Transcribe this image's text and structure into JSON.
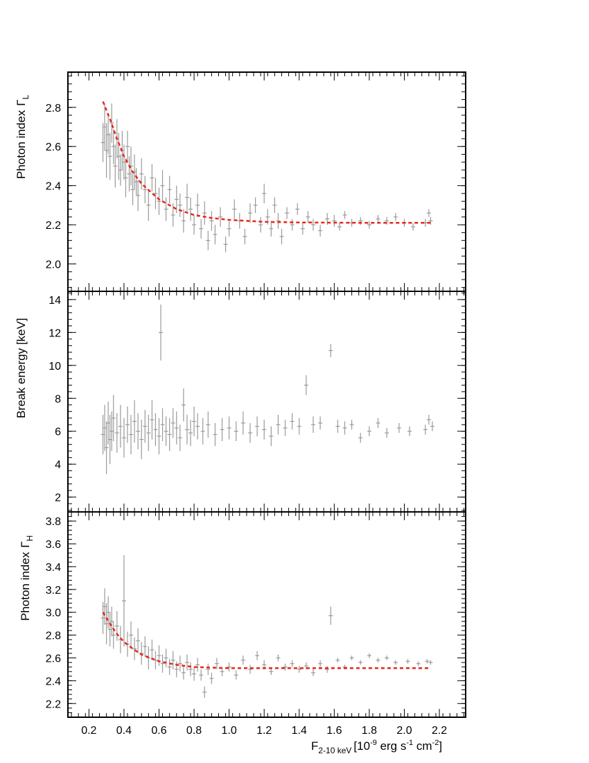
{
  "chart_data": [
    {
      "type": "scatter",
      "panel": "top",
      "ylabel": "Photon index",
      "ylabel_symbol": "Γ",
      "ylabel_sub": "L",
      "xlim": [
        0.08,
        2.35
      ],
      "ylim": [
        1.86,
        2.98
      ],
      "y_ticks": [
        2.0,
        2.2,
        2.4,
        2.6,
        2.8
      ],
      "y_tick_labels": [
        "2.0",
        "2.2",
        "2.4",
        "2.6",
        "2.8"
      ],
      "points_description": "grey data points with error bars, dense at low flux",
      "series": [
        {
          "name": "data",
          "color": "#999999",
          "x": [
            0.28,
            0.29,
            0.3,
            0.31,
            0.32,
            0.33,
            0.34,
            0.35,
            0.36,
            0.37,
            0.38,
            0.39,
            0.4,
            0.41,
            0.42,
            0.43,
            0.44,
            0.45,
            0.46,
            0.47,
            0.48,
            0.5,
            0.52,
            0.54,
            0.56,
            0.58,
            0.6,
            0.62,
            0.64,
            0.66,
            0.68,
            0.7,
            0.72,
            0.74,
            0.76,
            0.78,
            0.8,
            0.82,
            0.84,
            0.86,
            0.88,
            0.9,
            0.92,
            0.95,
            0.98,
            1.0,
            1.03,
            1.06,
            1.09,
            1.12,
            1.15,
            1.18,
            1.2,
            1.22,
            1.24,
            1.26,
            1.28,
            1.3,
            1.33,
            1.36,
            1.39,
            1.42,
            1.45,
            1.48,
            1.52,
            1.56,
            1.6,
            1.63,
            1.66,
            1.7,
            1.75,
            1.8,
            1.85,
            1.9,
            1.95,
            2.0,
            2.05,
            2.12,
            2.14,
            2.15
          ],
          "y": [
            2.62,
            2.7,
            2.58,
            2.66,
            2.55,
            2.72,
            2.6,
            2.5,
            2.64,
            2.55,
            2.48,
            2.58,
            2.52,
            2.44,
            2.6,
            2.46,
            2.5,
            2.38,
            2.47,
            2.42,
            2.35,
            2.46,
            2.38,
            2.3,
            2.44,
            2.36,
            2.32,
            2.4,
            2.28,
            2.38,
            2.25,
            2.33,
            2.3,
            2.22,
            2.34,
            2.28,
            2.2,
            2.3,
            2.18,
            2.26,
            2.12,
            2.22,
            2.15,
            2.24,
            2.1,
            2.18,
            2.28,
            2.22,
            2.14,
            2.26,
            2.3,
            2.2,
            2.36,
            2.24,
            2.18,
            2.3,
            2.22,
            2.14,
            2.26,
            2.2,
            2.28,
            2.18,
            2.24,
            2.2,
            2.17,
            2.23,
            2.22,
            2.19,
            2.25,
            2.21,
            2.22,
            2.2,
            2.23,
            2.22,
            2.24,
            2.21,
            2.19,
            2.21,
            2.26,
            2.22
          ],
          "yerr": [
            0.1,
            0.12,
            0.14,
            0.1,
            0.12,
            0.1,
            0.09,
            0.11,
            0.1,
            0.12,
            0.08,
            0.1,
            0.09,
            0.1,
            0.08,
            0.09,
            0.1,
            0.08,
            0.09,
            0.07,
            0.08,
            0.08,
            0.07,
            0.08,
            0.07,
            0.08,
            0.07,
            0.08,
            0.06,
            0.07,
            0.06,
            0.07,
            0.06,
            0.06,
            0.07,
            0.06,
            0.05,
            0.06,
            0.05,
            0.06,
            0.05,
            0.05,
            0.05,
            0.05,
            0.04,
            0.04,
            0.05,
            0.04,
            0.04,
            0.05,
            0.04,
            0.04,
            0.05,
            0.04,
            0.04,
            0.04,
            0.04,
            0.04,
            0.03,
            0.03,
            0.03,
            0.03,
            0.03,
            0.03,
            0.03,
            0.03,
            0.03,
            0.02,
            0.02,
            0.02,
            0.02,
            0.02,
            0.02,
            0.02,
            0.02,
            0.02,
            0.02,
            0.02,
            0.02,
            0.02
          ]
        },
        {
          "name": "fit",
          "color": "#e8251b",
          "style": "dashed",
          "x": [
            0.28,
            0.32,
            0.36,
            0.4,
            0.45,
            0.5,
            0.55,
            0.6,
            0.7,
            0.8,
            0.9,
            1.0,
            1.2,
            1.4,
            1.6,
            1.8,
            2.0,
            2.15
          ],
          "y": [
            2.83,
            2.74,
            2.64,
            2.55,
            2.47,
            2.41,
            2.37,
            2.33,
            2.28,
            2.25,
            2.235,
            2.225,
            2.215,
            2.212,
            2.211,
            2.21,
            2.21,
            2.21
          ]
        }
      ]
    },
    {
      "type": "scatter",
      "panel": "middle",
      "ylabel": "Break energy  [keV]",
      "xlim": [
        0.08,
        2.35
      ],
      "ylim": [
        1.1,
        14.5
      ],
      "y_ticks": [
        2,
        4,
        6,
        8,
        10,
        12,
        14
      ],
      "y_tick_labels": [
        "2",
        "4",
        "6",
        "8",
        "10",
        "12",
        "14"
      ],
      "series": [
        {
          "name": "data",
          "color": "#999999",
          "x": [
            0.28,
            0.29,
            0.3,
            0.31,
            0.32,
            0.33,
            0.34,
            0.36,
            0.38,
            0.4,
            0.42,
            0.44,
            0.46,
            0.48,
            0.5,
            0.52,
            0.54,
            0.56,
            0.58,
            0.6,
            0.61,
            0.62,
            0.64,
            0.66,
            0.68,
            0.7,
            0.72,
            0.74,
            0.76,
            0.78,
            0.8,
            0.82,
            0.85,
            0.88,
            0.92,
            0.96,
            1.0,
            1.04,
            1.08,
            1.12,
            1.16,
            1.2,
            1.24,
            1.28,
            1.32,
            1.36,
            1.4,
            1.44,
            1.48,
            1.52,
            1.58,
            1.62,
            1.66,
            1.7,
            1.75,
            1.8,
            1.85,
            1.9,
            1.97,
            2.03,
            2.12,
            2.14,
            2.16
          ],
          "y": [
            5.8,
            6.2,
            5.0,
            6.5,
            5.5,
            6.0,
            6.8,
            5.9,
            6.3,
            5.6,
            6.4,
            5.8,
            6.6,
            6.0,
            5.5,
            6.3,
            5.9,
            6.7,
            6.1,
            5.7,
            12.0,
            6.4,
            6.0,
            5.8,
            6.5,
            6.2,
            5.6,
            7.6,
            6.1,
            5.9,
            6.6,
            6.3,
            6.0,
            6.4,
            5.8,
            6.1,
            6.2,
            6.0,
            6.5,
            5.9,
            6.3,
            6.1,
            5.7,
            6.4,
            6.2,
            6.6,
            6.3,
            8.8,
            6.4,
            6.5,
            10.9,
            6.3,
            6.2,
            6.4,
            5.6,
            6.0,
            6.5,
            5.9,
            6.2,
            6.0,
            6.1,
            6.7,
            6.3
          ],
          "yerr": [
            1.2,
            1.4,
            1.6,
            1.3,
            1.5,
            1.2,
            1.4,
            1.2,
            1.3,
            1.2,
            1.1,
            1.2,
            1.3,
            1.1,
            1.2,
            1.0,
            1.1,
            1.2,
            1.0,
            1.1,
            1.7,
            1.0,
            0.9,
            1.0,
            0.9,
            1.0,
            0.8,
            1.0,
            0.9,
            0.8,
            0.9,
            0.8,
            0.8,
            0.8,
            0.7,
            0.7,
            0.7,
            0.6,
            0.7,
            0.6,
            0.6,
            0.6,
            0.6,
            0.6,
            0.5,
            0.5,
            0.5,
            0.6,
            0.5,
            0.4,
            0.4,
            0.4,
            0.4,
            0.3,
            0.3,
            0.3,
            0.3,
            0.3,
            0.3,
            0.3,
            0.3,
            0.3,
            0.3
          ]
        }
      ]
    },
    {
      "type": "scatter",
      "panel": "bottom",
      "ylabel": "Photon index",
      "ylabel_symbol": "Γ",
      "ylabel_sub": "H",
      "xlabel": "F",
      "xlabel_sub": "2-10 keV",
      "xlabel_unit": "[10",
      "xlabel_exp1": "-9",
      "xlabel_mid": " erg s",
      "xlabel_exp2": "-1",
      "xlabel_mid2": " cm",
      "xlabel_exp3": "-2",
      "xlabel_end": "]",
      "xlim": [
        0.08,
        2.35
      ],
      "ylim": [
        2.08,
        3.88
      ],
      "x_ticks": [
        0.2,
        0.4,
        0.6,
        0.8,
        1.0,
        1.2,
        1.4,
        1.6,
        1.8,
        2.0,
        2.2
      ],
      "x_tick_labels": [
        "0.2",
        "0.4",
        "0.6",
        "0.8",
        "1.0",
        "1.2",
        "1.4",
        "1.6",
        "1.8",
        "2.0",
        "2.2"
      ],
      "y_ticks": [
        2.2,
        2.4,
        2.6,
        2.8,
        3.0,
        3.2,
        3.4,
        3.6,
        3.8
      ],
      "y_tick_labels": [
        "2.2",
        "2.4",
        "2.6",
        "2.8",
        "3.0",
        "3.2",
        "3.4",
        "3.6",
        "3.8"
      ],
      "series": [
        {
          "name": "data",
          "color": "#999999",
          "x": [
            0.28,
            0.29,
            0.3,
            0.31,
            0.32,
            0.33,
            0.34,
            0.36,
            0.38,
            0.4,
            0.42,
            0.44,
            0.46,
            0.48,
            0.5,
            0.52,
            0.54,
            0.56,
            0.58,
            0.6,
            0.62,
            0.64,
            0.66,
            0.68,
            0.7,
            0.72,
            0.74,
            0.76,
            0.78,
            0.8,
            0.82,
            0.84,
            0.86,
            0.88,
            0.9,
            0.93,
            0.96,
            1.0,
            1.04,
            1.08,
            1.12,
            1.16,
            1.2,
            1.24,
            1.28,
            1.32,
            1.36,
            1.4,
            1.44,
            1.48,
            1.52,
            1.56,
            1.58,
            1.62,
            1.66,
            1.7,
            1.75,
            1.8,
            1.85,
            1.9,
            1.95,
            2.02,
            2.08,
            2.13,
            2.15
          ],
          "y": [
            2.95,
            3.05,
            2.9,
            3.0,
            2.85,
            2.92,
            2.8,
            2.88,
            2.76,
            3.1,
            2.72,
            2.8,
            2.68,
            2.75,
            2.64,
            2.7,
            2.6,
            2.67,
            2.58,
            2.62,
            2.55,
            2.6,
            2.52,
            2.58,
            2.5,
            2.55,
            2.47,
            2.56,
            2.5,
            2.46,
            2.54,
            2.45,
            2.3,
            2.5,
            2.42,
            2.55,
            2.48,
            2.52,
            2.45,
            2.58,
            2.5,
            2.62,
            2.54,
            2.48,
            2.6,
            2.52,
            2.55,
            2.5,
            2.53,
            2.47,
            2.55,
            2.5,
            2.97,
            2.58,
            2.52,
            2.6,
            2.56,
            2.62,
            2.58,
            2.6,
            2.56,
            2.57,
            2.55,
            2.57,
            2.56
          ],
          "yerr": [
            0.14,
            0.16,
            0.18,
            0.14,
            0.15,
            0.13,
            0.12,
            0.13,
            0.12,
            0.4,
            0.11,
            0.12,
            0.1,
            0.11,
            0.1,
            0.09,
            0.1,
            0.09,
            0.08,
            0.09,
            0.08,
            0.08,
            0.07,
            0.08,
            0.07,
            0.07,
            0.06,
            0.07,
            0.06,
            0.06,
            0.06,
            0.05,
            0.05,
            0.05,
            0.05,
            0.05,
            0.04,
            0.04,
            0.04,
            0.04,
            0.04,
            0.04,
            0.04,
            0.03,
            0.03,
            0.03,
            0.03,
            0.03,
            0.03,
            0.03,
            0.03,
            0.03,
            0.08,
            0.02,
            0.02,
            0.02,
            0.02,
            0.02,
            0.02,
            0.02,
            0.02,
            0.02,
            0.02,
            0.02,
            0.02
          ]
        },
        {
          "name": "fit",
          "color": "#e8251b",
          "style": "dashed",
          "x": [
            0.28,
            0.32,
            0.36,
            0.4,
            0.45,
            0.5,
            0.55,
            0.6,
            0.7,
            0.8,
            0.9,
            1.0,
            1.2,
            1.4,
            1.6,
            1.8,
            2.0,
            2.15
          ],
          "y": [
            3.0,
            2.9,
            2.81,
            2.74,
            2.68,
            2.63,
            2.6,
            2.57,
            2.54,
            2.52,
            2.515,
            2.51,
            2.51,
            2.51,
            2.51,
            2.51,
            2.51,
            2.51
          ]
        }
      ]
    }
  ],
  "colors": {
    "data": "#999999",
    "fit": "#e8251b",
    "axes": "#000000"
  }
}
